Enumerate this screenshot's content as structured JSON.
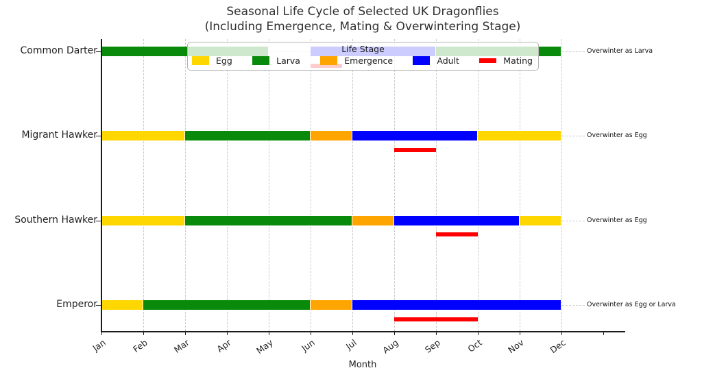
{
  "chart_data": {
    "type": "bar",
    "layout": "horizontal-gantt-timeline",
    "title_line1": "Seasonal Life Cycle of Selected UK Dragonflies",
    "title_line2": "(Including Emergence, Mating & Overwintering Stage)",
    "xlabel": "Month",
    "months": [
      "Jan",
      "Feb",
      "Mar",
      "Apr",
      "May",
      "Jun",
      "Jul",
      "Aug",
      "Sep",
      "Oct",
      "Nov",
      "Dec"
    ],
    "x_axis_note": "months Jan=1 to Dec=12, unlabeled 13th tick at right edge, grid on (dashed)",
    "stage_colors": {
      "Egg": "#FFD700",
      "Larva": "#0a8a0a",
      "Emergence": "#FFA500",
      "Adult": "#0000FF",
      "Mating": "#FF0000"
    },
    "legend": {
      "title": "Life Stage",
      "position": "upper center, semi-transparent over plot",
      "entries": [
        {
          "label": "Egg",
          "color": "#FFD700",
          "swatch": "bar"
        },
        {
          "label": "Larva",
          "color": "#0a8a0a",
          "swatch": "bar"
        },
        {
          "label": "Emergence",
          "color": "#FFA500",
          "swatch": "bar"
        },
        {
          "label": "Adult",
          "color": "#0000FF",
          "swatch": "bar"
        },
        {
          "label": "Mating",
          "color": "#FF0000",
          "swatch": "line"
        }
      ]
    },
    "species": [
      {
        "name": "Common Darter",
        "annotation": "Overwinter as Larva",
        "segments": [
          {
            "stage": "Larva",
            "start": 1,
            "end": 5
          },
          {
            "stage": "Adult",
            "start": 6,
            "end": 9
          },
          {
            "stage": "Larva",
            "start": 9,
            "end": 12
          }
        ],
        "mating": {
          "stage": "Mating",
          "start": 6,
          "end": 6.75
        }
      },
      {
        "name": "Migrant Hawker",
        "annotation": "Overwinter as Egg",
        "segments": [
          {
            "stage": "Egg",
            "start": 1,
            "end": 3
          },
          {
            "stage": "Larva",
            "start": 3,
            "end": 6
          },
          {
            "stage": "Emergence",
            "start": 6,
            "end": 7
          },
          {
            "stage": "Adult",
            "start": 7,
            "end": 10
          },
          {
            "stage": "Egg",
            "start": 10,
            "end": 12
          }
        ],
        "mating": {
          "stage": "Mating",
          "start": 8,
          "end": 9
        }
      },
      {
        "name": "Southern Hawker",
        "annotation": "Overwinter as Egg",
        "segments": [
          {
            "stage": "Egg",
            "start": 1,
            "end": 3
          },
          {
            "stage": "Larva",
            "start": 3,
            "end": 7
          },
          {
            "stage": "Emergence",
            "start": 7,
            "end": 8
          },
          {
            "stage": "Adult",
            "start": 8,
            "end": 11
          },
          {
            "stage": "Egg",
            "start": 11,
            "end": 12
          }
        ],
        "mating": {
          "stage": "Mating",
          "start": 9,
          "end": 10
        }
      },
      {
        "name": "Emperor",
        "annotation": "Overwinter as Egg or Larva",
        "segments": [
          {
            "stage": "Egg",
            "start": 1,
            "end": 2
          },
          {
            "stage": "Larva",
            "start": 2,
            "end": 6
          },
          {
            "stage": "Emergence",
            "start": 6,
            "end": 7
          },
          {
            "stage": "Adult",
            "start": 7,
            "end": 12
          }
        ],
        "mating": {
          "stage": "Mating",
          "start": 8,
          "end": 10
        }
      }
    ]
  }
}
